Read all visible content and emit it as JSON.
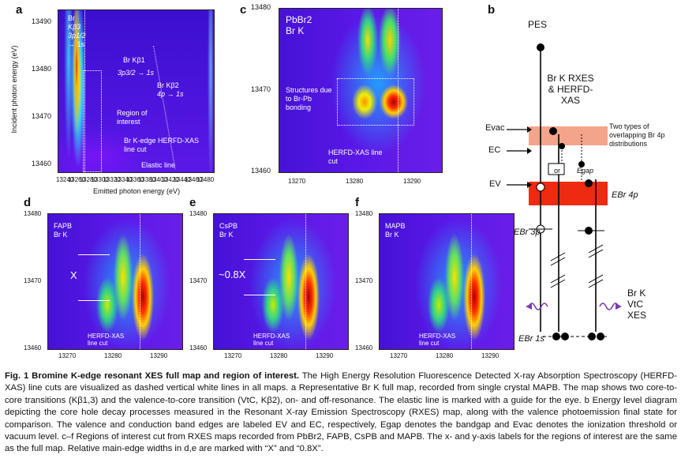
{
  "panel_a": {
    "label": "a",
    "y_ticks": [
      "13490",
      "13480",
      "13470",
      "13460"
    ],
    "x_ticks": [
      "13240",
      "13260",
      "13280",
      "13300",
      "13320",
      "13340",
      "13360",
      "13380",
      "13400",
      "13420",
      "13440",
      "13460",
      "13480"
    ],
    "ylabel": "Incident photon energy (eV)",
    "xlabel": "Emitted photon energy (eV)",
    "ann_br": "Br",
    "ann_kb3": "Kβ3",
    "ann_3p": "3p1/2",
    "ann_1s": "→ 1s",
    "ann_kb1": "Br Kβ1",
    "ann_kb1_tr": "3p3/2 → 1s",
    "ann_kb2": "Br Kβ2",
    "ann_kb2_tr": "4p → 1s",
    "ann_roi": "Region of interest",
    "ann_kedge": "Br K-edge HERFD-XAS line cut",
    "ann_elastic": "Elastic line"
  },
  "panel_c": {
    "label": "c",
    "title1": "PbBr2",
    "title2": "Br K",
    "y_ticks": [
      "13480",
      "13470",
      "13460"
    ],
    "x_ticks": [
      "13270",
      "13280",
      "13290"
    ],
    "ann_struct": "Structures due to Br-Pb bonding",
    "ann_cut": "HERFD-XAS line cut"
  },
  "panel_b": {
    "label": "b",
    "pes": "PES",
    "title": "Br K RXES & HERFD-XAS",
    "evac": "Evac",
    "ec": "EC",
    "ev": "EV",
    "egap": "Egap",
    "or": "or",
    "two_types": "Two types of overlapping Br 4p distributions",
    "ebr4p": "EBr 4p",
    "ebr3p": "EBr 3p",
    "ebr1s": "EBr 1s",
    "vtc": "Br K VtC XES"
  },
  "panels_small": [
    {
      "label": "d",
      "title1": "FAPB",
      "title2": "Br K",
      "width_mark": "X",
      "cut": "HERFD-XAS line cut"
    },
    {
      "label": "e",
      "title1": "CsPB",
      "title2": "Br K",
      "width_mark": "~0.8X",
      "cut": "HERFD-XAS line cut"
    },
    {
      "label": "f",
      "title1": "MAPB",
      "title2": "Br K",
      "width_mark": "",
      "cut": "HERFD-XAS line cut"
    }
  ],
  "small_y_ticks": [
    "13480",
    "13470",
    "13460"
  ],
  "small_x_ticks": [
    "13270",
    "13280",
    "13290"
  ],
  "caption": {
    "fig": "Fig. 1 Bromine K-edge resonant XES full map and region of interest.",
    "text": "The High Energy Resolution Fluorescence Detected X-ray Absorption Spectroscopy (HERFD-XAS) line cuts are visualized as dashed vertical white lines in all maps. a Representative Br K full map, recorded from single crystal MAPB. The map shows two core-to-core transitions (Kβ1,3) and the valence-to-core transition (VtC, Kβ2), on- and off-resonance. The elastic line is marked with a guide for the eye. b Energy level diagram depicting the core hole decay processes measured in the Resonant X-ray Emission Spectroscopy (RXES) map, along with the valence photoemission final state for comparison. The valence and conduction band edges are labeled EV and EC, respectively, Egap denotes the bandgap and Evac denotes the ionization threshold or vacuum level. c–f Regions of interest cut from RXES maps recorded from PbBr2, FAPB, CsPB and MAPB. The x- and y-axis labels for the regions of interest are the same as the full map. Relative main-edge widths in d,e are marked with “X” and “0.8X”."
  }
}
